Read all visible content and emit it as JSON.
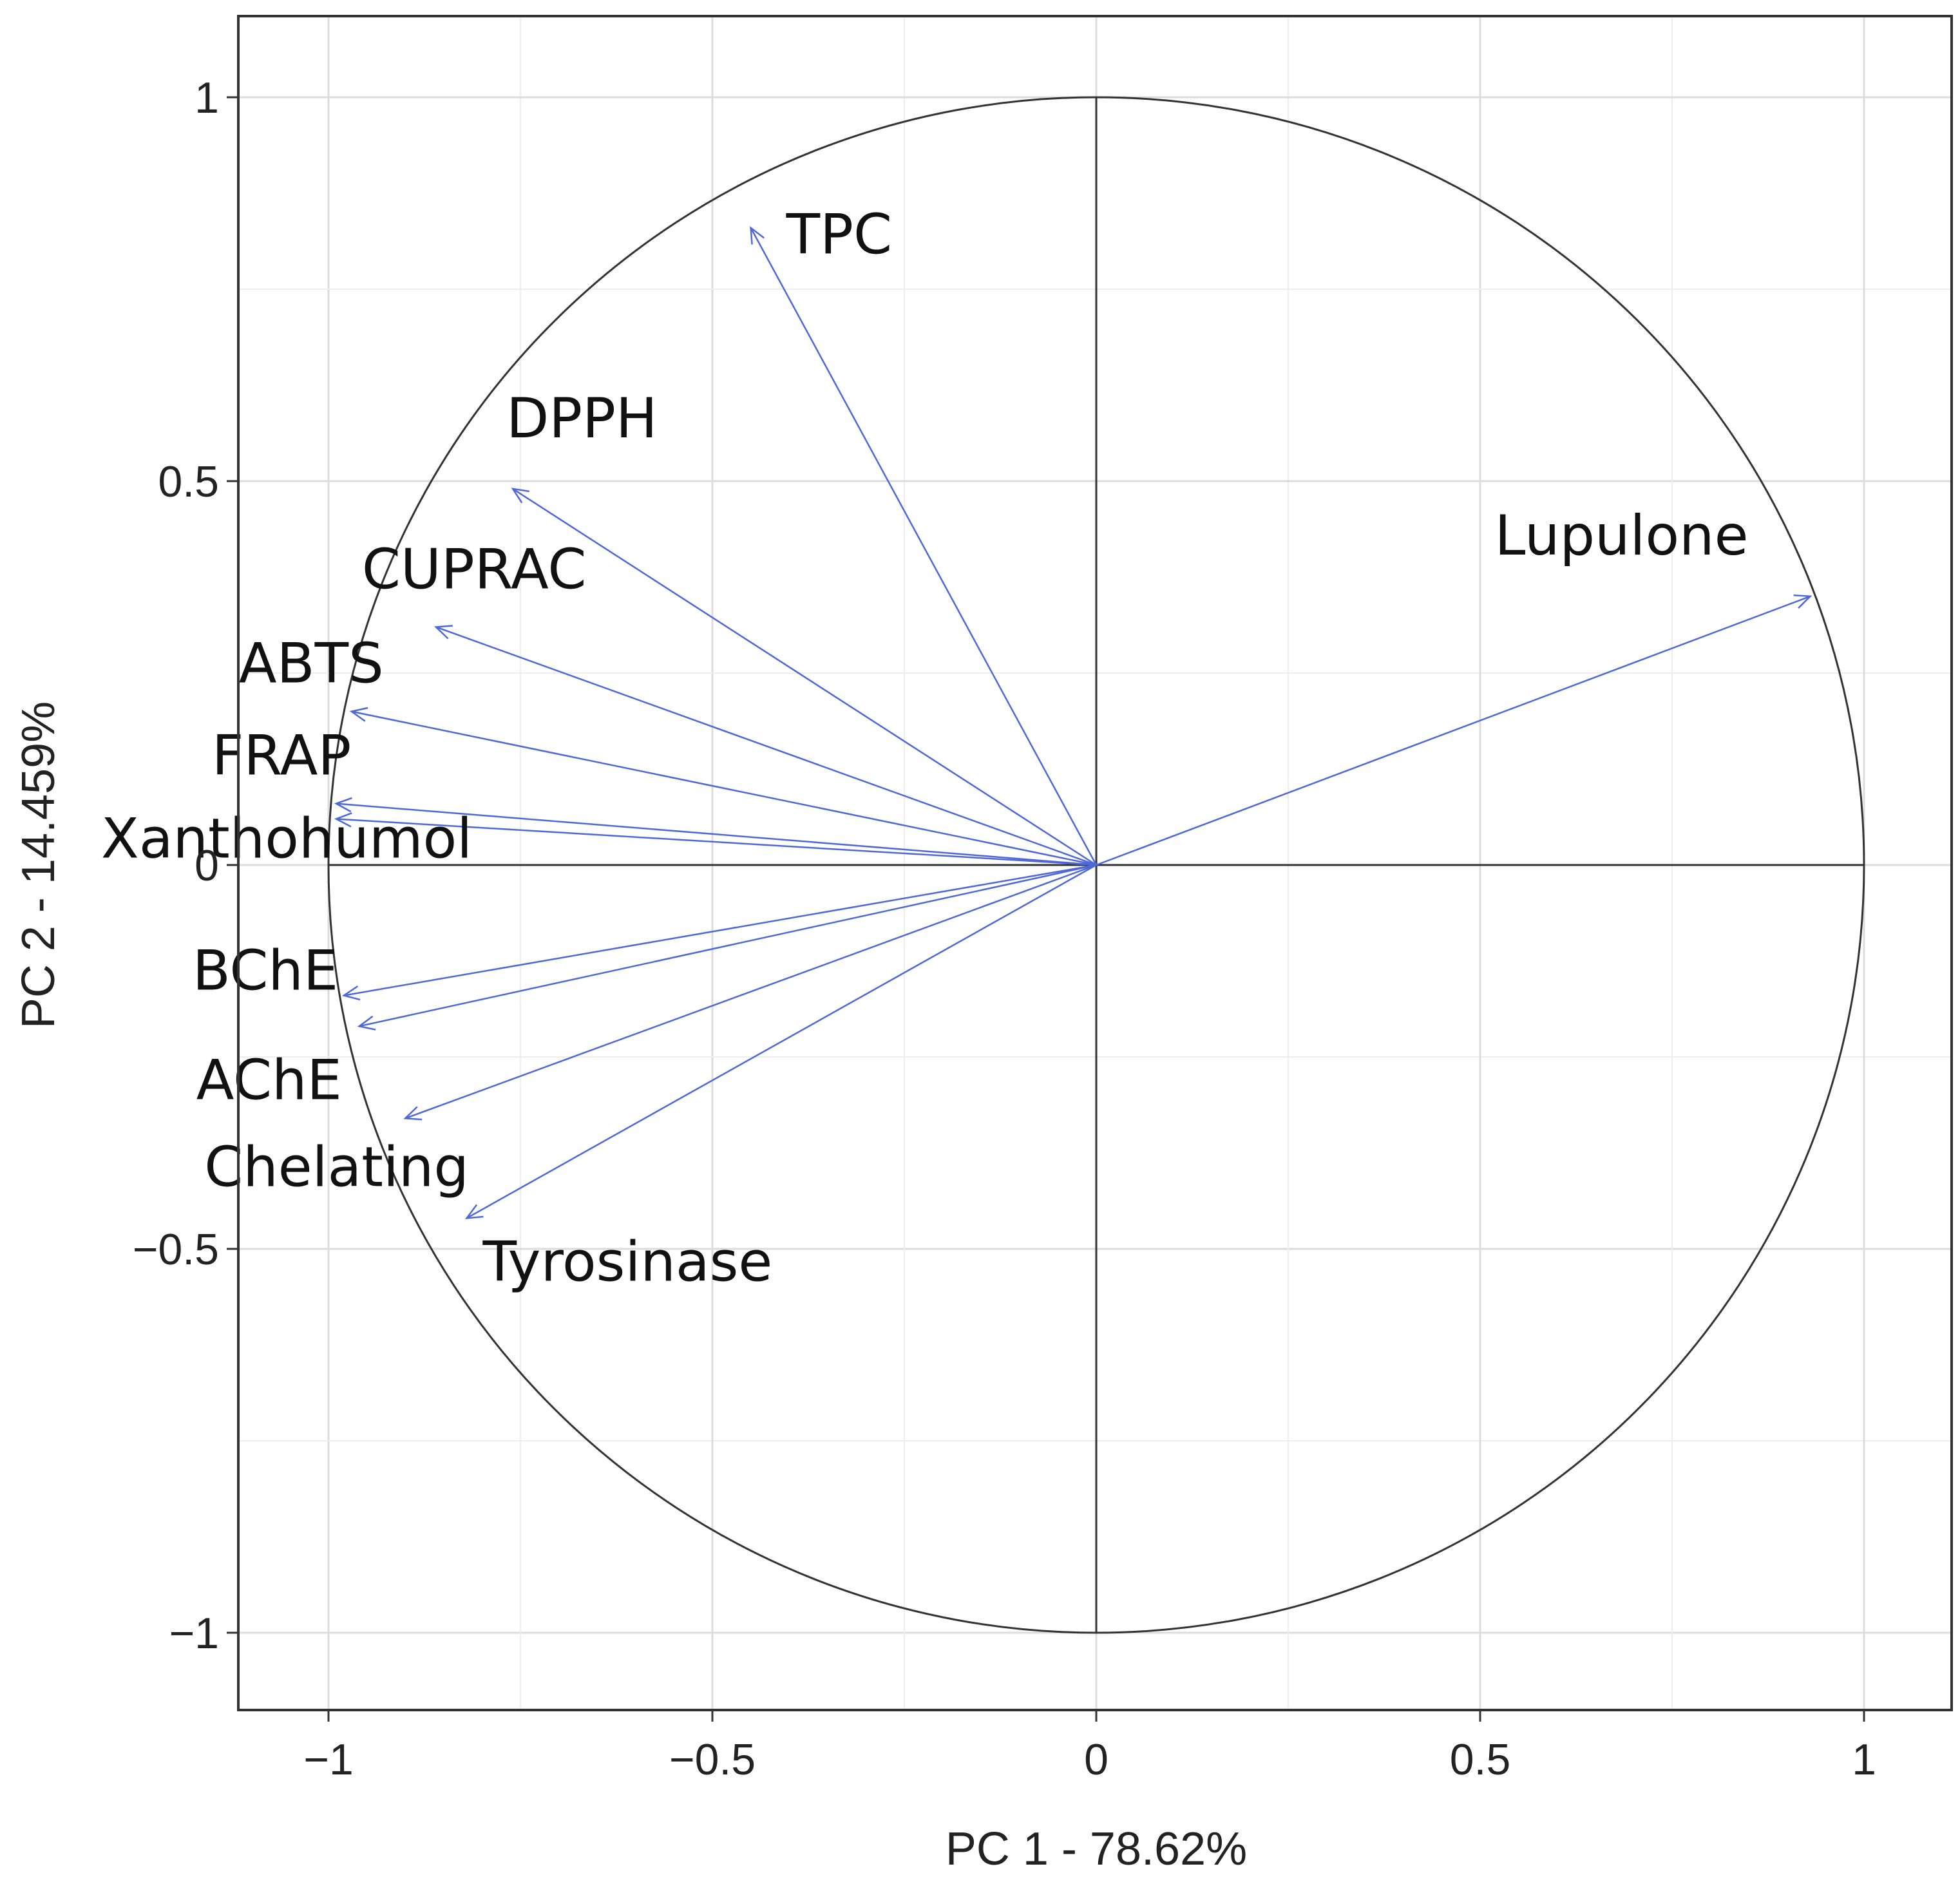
{
  "chart_data": {
    "type": "scatter",
    "subtype": "pca-correlation-circle",
    "title": "",
    "xlabel": "PC 1 - 78.62%",
    "ylabel": "PC 2 - 14.459%",
    "xlim": [
      -1.12,
      1.12
    ],
    "ylim": [
      -1.12,
      1.12
    ],
    "x_ticks": [
      -1,
      -0.5,
      0,
      0.5,
      1
    ],
    "y_ticks": [
      -1,
      -0.5,
      0,
      0.5,
      1
    ],
    "x_tick_labels": [
      "−1",
      "−0.5",
      "0",
      "0.5",
      "1"
    ],
    "y_tick_labels": [
      "−1",
      "−0.5",
      "0",
      "0.5",
      "1"
    ],
    "grid": true,
    "unit_circle_radius": 1,
    "arrow_color": "#4f68d8",
    "variables": [
      {
        "name": "TPC",
        "x": -0.45,
        "y": 0.83
      },
      {
        "name": "DPPH",
        "x": -0.76,
        "y": 0.49
      },
      {
        "name": "CUPRAC",
        "x": -0.86,
        "y": 0.31
      },
      {
        "name": "ABTS",
        "x": -0.97,
        "y": 0.2
      },
      {
        "name": "FRAP",
        "x": -0.99,
        "y": 0.08
      },
      {
        "name": "Xanthohumol",
        "x": -0.99,
        "y": 0.06
      },
      {
        "name": "BChE",
        "x": -0.98,
        "y": -0.17
      },
      {
        "name": "AChE",
        "x": -0.96,
        "y": -0.21
      },
      {
        "name": "Chelating",
        "x": -0.9,
        "y": -0.33
      },
      {
        "name": "Tyrosinase",
        "x": -0.82,
        "y": -0.46
      },
      {
        "name": "Lupulone",
        "x": 0.93,
        "y": 0.35
      }
    ]
  }
}
